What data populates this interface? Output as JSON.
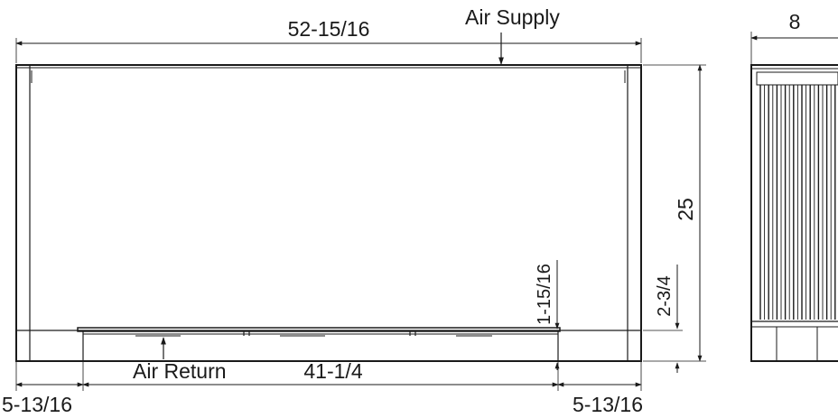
{
  "labels": {
    "air_supply": "Air Supply",
    "air_return": "Air Return"
  },
  "dimensions": {
    "overall_width": "52-15/16",
    "depth": "8",
    "height": "25",
    "return_width": "41-1/4",
    "return_height": "1-15/16",
    "base_height": "2-3/4",
    "left_offset": "5-13/16",
    "right_offset": "5-13/16"
  },
  "colors": {
    "line": "#1a1a1a",
    "background": "#ffffff"
  }
}
